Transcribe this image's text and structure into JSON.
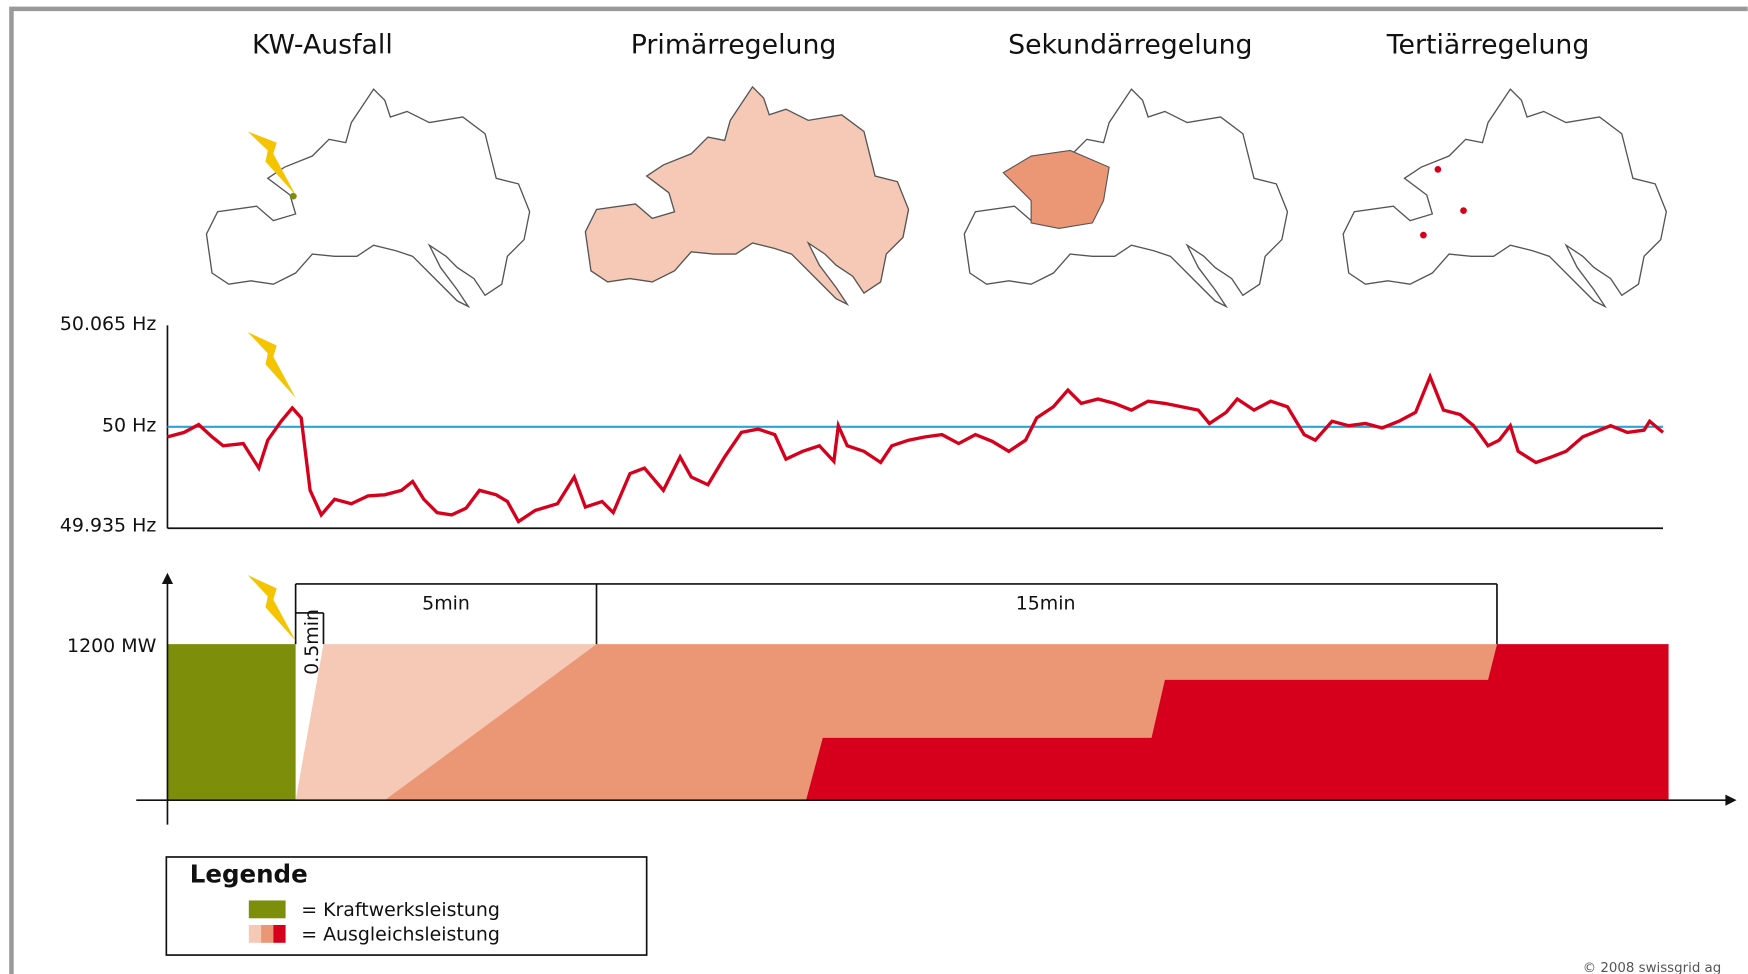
{
  "header": {
    "titles": [
      "KW-Ausfall",
      "Primärregelung",
      "Sekundärregelung",
      "Tertiärregelung"
    ]
  },
  "frequency": {
    "labels": [
      "50.065 Hz",
      "50 Hz",
      "49.935 Hz"
    ]
  },
  "power": {
    "label": "1200 MW",
    "durations": [
      "5min",
      "15min",
      "0.5min"
    ]
  },
  "legend": {
    "title": "Legende",
    "items": [
      "= Kraftwerksleistung",
      "= Ausgleichsleistung"
    ]
  },
  "footer": {
    "copyright": "© 2008 swissgrid ag"
  }
}
